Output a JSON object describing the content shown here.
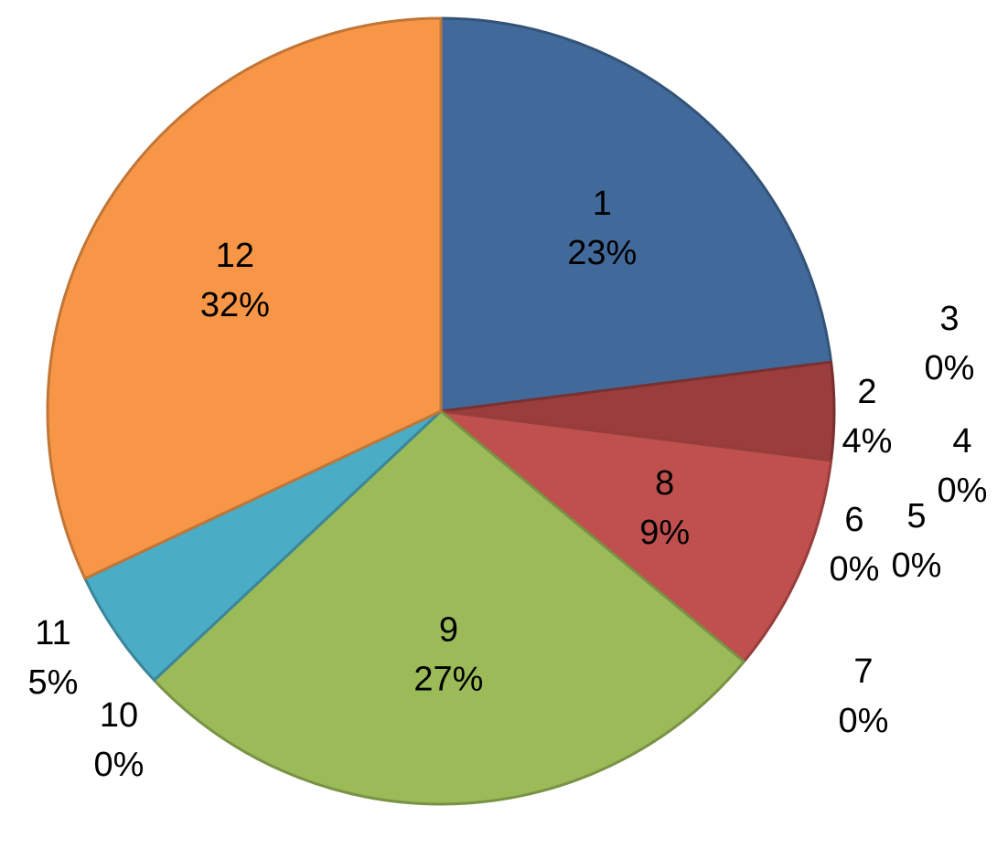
{
  "chart_data": {
    "type": "pie",
    "slices": [
      {
        "category": "1",
        "value": 23,
        "label": "23%",
        "color": "#416A9B"
      },
      {
        "category": "2",
        "value": 4,
        "label": "4%",
        "color": "#9B3D3D"
      },
      {
        "category": "3",
        "value": 0,
        "label": "0%",
        "color": "#7F9A48"
      },
      {
        "category": "4",
        "value": 0,
        "label": "0%",
        "color": "#6A5290"
      },
      {
        "category": "5",
        "value": 0,
        "label": "0%",
        "color": "#3D97AF"
      },
      {
        "category": "6",
        "value": 0,
        "label": "0%",
        "color": "#DD8538"
      },
      {
        "category": "7",
        "value": 0,
        "label": "0%",
        "color": "#8FA9D1"
      },
      {
        "category": "8",
        "value": 9,
        "label": "9%",
        "color": "#C0504D"
      },
      {
        "category": "9",
        "value": 27,
        "label": "27%",
        "color": "#9BBB59"
      },
      {
        "category": "10",
        "value": 0,
        "label": "0%",
        "color": "#8064A2"
      },
      {
        "category": "11",
        "value": 5,
        "label": "5%",
        "color": "#4BACC6"
      },
      {
        "category": "12",
        "value": 32,
        "label": "32%",
        "color": "#F79646"
      }
    ]
  }
}
